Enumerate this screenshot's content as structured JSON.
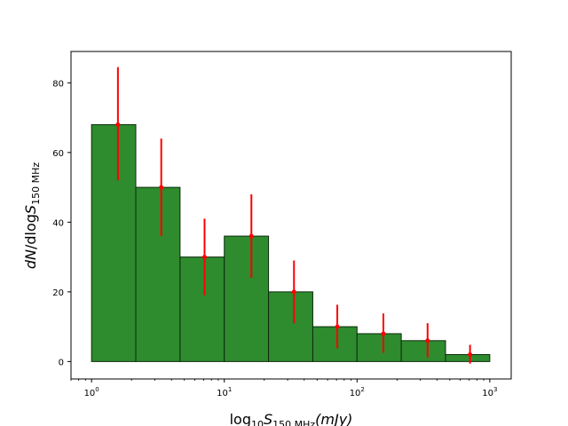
{
  "chart_data": {
    "type": "bar",
    "xscale": "log",
    "xlim": [
      0.7,
      1450
    ],
    "ylim": [
      -5,
      89
    ],
    "xlabel_main": "log",
    "xlabel_sub1": "10",
    "xlabel_italic": "S",
    "xlabel_sub2": "150 MHz",
    "xlabel_tail": "(mJy)",
    "ylabel_italic1": "dN",
    "ylabel_sep": "/dlog",
    "ylabel_italic2": "S",
    "ylabel_sub": "150 MHz",
    "x_ticks": [
      {
        "base": "10",
        "exp": "0",
        "value": 1
      },
      {
        "base": "10",
        "exp": "1",
        "value": 10
      },
      {
        "base": "10",
        "exp": "2",
        "value": 100
      },
      {
        "base": "10",
        "exp": "3",
        "value": 1000
      }
    ],
    "y_ticks": [
      {
        "label": "0",
        "value": 0
      },
      {
        "label": "20",
        "value": 20
      },
      {
        "label": "40",
        "value": 40
      },
      {
        "label": "60",
        "value": 60
      },
      {
        "label": "80",
        "value": 80
      }
    ],
    "bins": [
      {
        "left": 1.0,
        "right": 2.154,
        "value": 68,
        "center": 1.58,
        "err_low": 52,
        "err_high": 84.5
      },
      {
        "left": 2.154,
        "right": 4.642,
        "value": 50,
        "center": 3.35,
        "err_low": 36,
        "err_high": 64
      },
      {
        "left": 4.642,
        "right": 10.0,
        "value": 30,
        "center": 7.1,
        "err_low": 19,
        "err_high": 41
      },
      {
        "left": 10.0,
        "right": 21.54,
        "value": 36,
        "center": 16.0,
        "err_low": 24,
        "err_high": 48
      },
      {
        "left": 21.54,
        "right": 46.42,
        "value": 20,
        "center": 33.5,
        "err_low": 11,
        "err_high": 29
      },
      {
        "left": 46.42,
        "right": 100.0,
        "value": 10,
        "center": 71.0,
        "err_low": 3.8,
        "err_high": 16.3
      },
      {
        "left": 100.0,
        "right": 215.4,
        "value": 8,
        "center": 158.0,
        "err_low": 2.5,
        "err_high": 13.8
      },
      {
        "left": 215.4,
        "right": 464.2,
        "value": 6,
        "center": 340.0,
        "err_low": 1.2,
        "err_high": 11.0
      },
      {
        "left": 464.2,
        "right": 1000.0,
        "value": 2,
        "center": 710.0,
        "err_low": -0.6,
        "err_high": 4.8
      }
    ],
    "colors": {
      "bar_fill": "#2e8b2e",
      "bar_edge": "#0d2a0d",
      "error_bar": "#ff0000"
    },
    "grid": false,
    "legend": "none"
  }
}
